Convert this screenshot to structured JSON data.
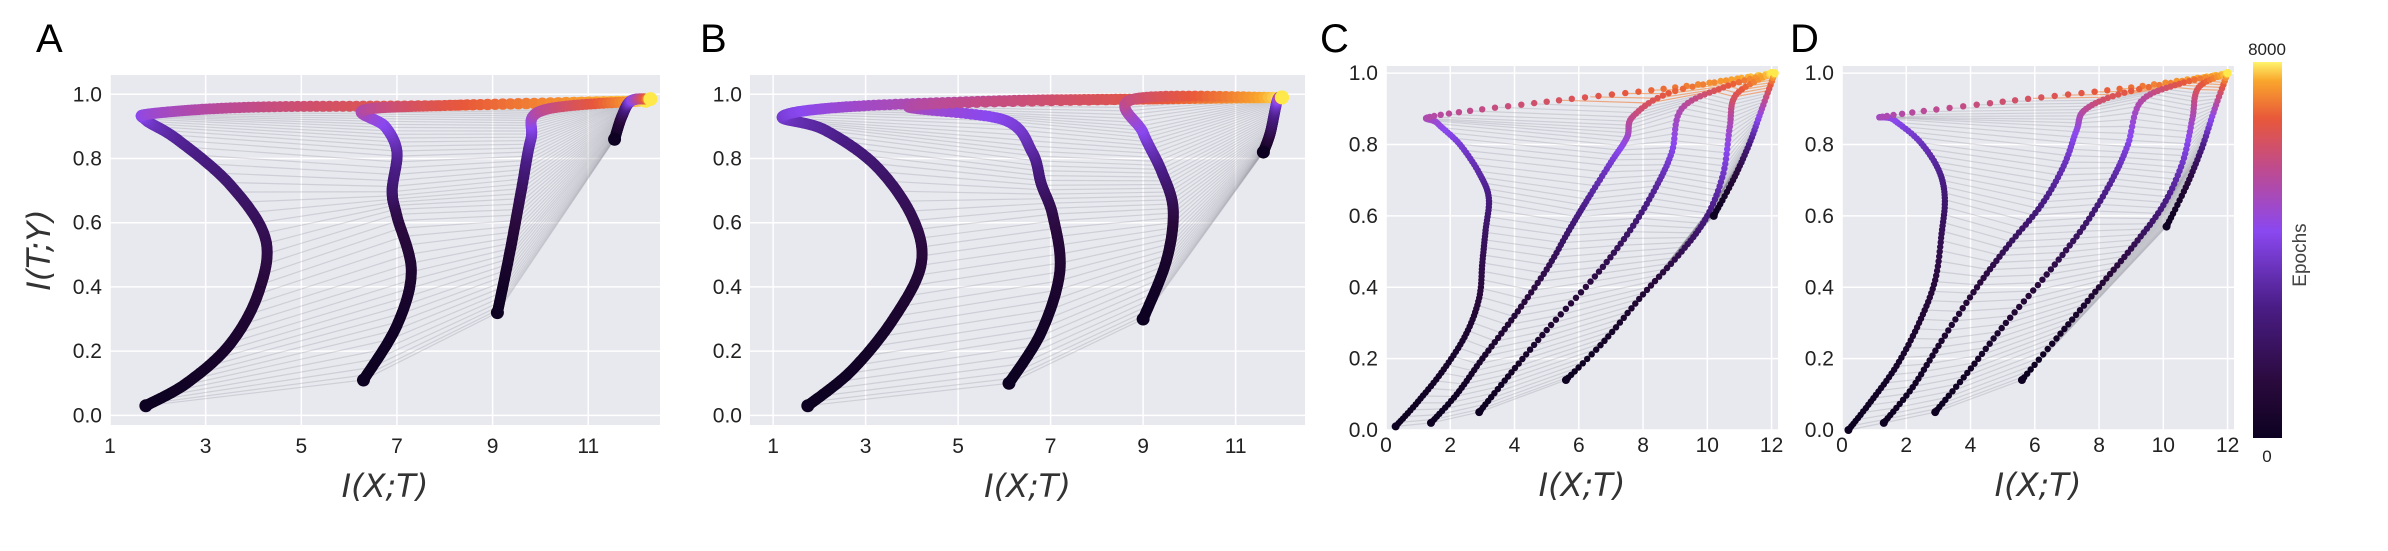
{
  "figure": {
    "colorbar": {
      "label": "Epochs",
      "max_label": "8000",
      "min_label": "0",
      "min": 0,
      "max": 8000
    }
  },
  "chart_data": [
    {
      "panel": "A",
      "type": "line",
      "xlabel": "I(X;T)",
      "ylabel": "I(T;Y)",
      "xlim": [
        1,
        12.5
      ],
      "ylim": [
        -0.03,
        1.06
      ],
      "xticks": [
        1,
        3,
        5,
        7,
        9,
        11
      ],
      "yticks": [
        "0.0",
        "0.2",
        "0.4",
        "0.6",
        "0.8",
        "1.0"
      ],
      "grid": true,
      "marker": "filled-circle",
      "color_encodes": "Epochs",
      "series": [
        {
          "points": [
            [
              1.75,
              0.03
            ],
            [
              2.6,
              0.1
            ],
            [
              3.5,
              0.22
            ],
            [
              4.1,
              0.38
            ],
            [
              4.25,
              0.55
            ],
            [
              3.5,
              0.72
            ],
            [
              2.4,
              0.86
            ],
            [
              1.75,
              0.92
            ],
            [
              1.9,
              0.94
            ],
            [
              4.0,
              0.96
            ],
            [
              8.0,
              0.965
            ],
            [
              12.2,
              0.98
            ]
          ]
        },
        {
          "points": [
            [
              6.3,
              0.11
            ],
            [
              7.0,
              0.28
            ],
            [
              7.3,
              0.45
            ],
            [
              7.0,
              0.62
            ],
            [
              6.9,
              0.7
            ],
            [
              7.0,
              0.82
            ],
            [
              6.75,
              0.9
            ],
            [
              6.3,
              0.95
            ],
            [
              8.0,
              0.965
            ],
            [
              12.2,
              0.98
            ]
          ]
        },
        {
          "points": [
            [
              9.1,
              0.32
            ],
            [
              9.35,
              0.5
            ],
            [
              9.6,
              0.7
            ],
            [
              9.8,
              0.86
            ],
            [
              10.05,
              0.95
            ],
            [
              12.2,
              0.98
            ]
          ]
        },
        {
          "points": [
            [
              11.55,
              0.86
            ],
            [
              11.7,
              0.93
            ],
            [
              11.9,
              0.98
            ],
            [
              12.3,
              0.985
            ]
          ]
        }
      ]
    },
    {
      "panel": "B",
      "type": "line",
      "xlabel": "I(X;T)",
      "ylabel": "",
      "xlim": [
        0.5,
        12.5
      ],
      "ylim": [
        -0.03,
        1.06
      ],
      "xticks": [
        1,
        3,
        5,
        7,
        9,
        11
      ],
      "yticks": [
        "0.0",
        "0.2",
        "0.4",
        "0.6",
        "0.8",
        "1.0"
      ],
      "grid": true,
      "marker": "filled-circle",
      "color_encodes": "Epochs",
      "series": [
        {
          "points": [
            [
              1.75,
              0.03
            ],
            [
              2.7,
              0.14
            ],
            [
              3.6,
              0.3
            ],
            [
              4.2,
              0.47
            ],
            [
              4.0,
              0.62
            ],
            [
              3.2,
              0.78
            ],
            [
              2.1,
              0.89
            ],
            [
              1.2,
              0.93
            ],
            [
              2.5,
              0.96
            ],
            [
              6.0,
              0.98
            ],
            [
              9.0,
              0.985
            ],
            [
              12.0,
              0.99
            ]
          ]
        },
        {
          "points": [
            [
              6.1,
              0.1
            ],
            [
              6.8,
              0.26
            ],
            [
              7.2,
              0.45
            ],
            [
              7.05,
              0.62
            ],
            [
              6.8,
              0.72
            ],
            [
              6.6,
              0.82
            ],
            [
              6.0,
              0.92
            ],
            [
              4.0,
              0.965
            ],
            [
              9.0,
              0.985
            ],
            [
              12.0,
              0.99
            ]
          ]
        },
        {
          "points": [
            [
              9.0,
              0.3
            ],
            [
              9.5,
              0.48
            ],
            [
              9.65,
              0.64
            ],
            [
              9.4,
              0.76
            ],
            [
              9.0,
              0.88
            ],
            [
              8.8,
              0.985
            ],
            [
              12.0,
              0.99
            ]
          ]
        },
        {
          "points": [
            [
              11.6,
              0.82
            ],
            [
              11.75,
              0.88
            ],
            [
              11.9,
              0.98
            ],
            [
              12.0,
              0.99
            ]
          ]
        }
      ]
    },
    {
      "panel": "C",
      "type": "scatter",
      "xlabel": "I(X;T)",
      "ylabel": "",
      "xlim": [
        0,
        12.2
      ],
      "ylim": [
        0,
        1.02
      ],
      "xticks": [
        0,
        2,
        4,
        6,
        8,
        10,
        12
      ],
      "yticks": [
        "0.0",
        "0.2",
        "0.4",
        "0.6",
        "0.8",
        "1.0"
      ],
      "grid": true,
      "marker": "filled-circle",
      "color_encodes": "Epochs",
      "series": [
        {
          "points": [
            [
              0.3,
              0.01
            ],
            [
              1.0,
              0.08
            ],
            [
              1.8,
              0.17
            ],
            [
              2.5,
              0.27
            ],
            [
              2.9,
              0.37
            ],
            [
              3.0,
              0.47
            ],
            [
              3.1,
              0.56
            ],
            [
              3.2,
              0.65
            ],
            [
              2.9,
              0.72
            ],
            [
              2.3,
              0.8
            ],
            [
              1.6,
              0.86
            ],
            [
              1.5,
              0.88
            ],
            [
              5.0,
              0.92
            ],
            [
              9.0,
              0.96
            ],
            [
              12.0,
              1.0
            ]
          ]
        },
        {
          "points": [
            [
              1.4,
              0.02
            ],
            [
              2.2,
              0.1
            ],
            [
              3.0,
              0.2
            ],
            [
              4.0,
              0.32
            ],
            [
              5.0,
              0.45
            ],
            [
              5.7,
              0.56
            ],
            [
              6.3,
              0.65
            ],
            [
              7.0,
              0.75
            ],
            [
              7.5,
              0.82
            ],
            [
              7.7,
              0.88
            ],
            [
              9.0,
              0.95
            ],
            [
              12.0,
              1.0
            ]
          ]
        },
        {
          "points": [
            [
              2.9,
              0.05
            ],
            [
              3.8,
              0.15
            ],
            [
              5.0,
              0.28
            ],
            [
              6.5,
              0.43
            ],
            [
              7.6,
              0.56
            ],
            [
              8.4,
              0.68
            ],
            [
              8.9,
              0.78
            ],
            [
              9.2,
              0.9
            ],
            [
              10.5,
              0.96
            ],
            [
              12.0,
              1.0
            ]
          ]
        },
        {
          "points": [
            [
              5.6,
              0.14
            ],
            [
              6.8,
              0.25
            ],
            [
              8.0,
              0.38
            ],
            [
              9.2,
              0.5
            ],
            [
              10.0,
              0.6
            ],
            [
              10.5,
              0.72
            ],
            [
              10.7,
              0.85
            ],
            [
              10.9,
              0.94
            ],
            [
              12.0,
              1.0
            ]
          ]
        },
        {
          "points": [
            [
              10.2,
              0.6
            ],
            [
              10.8,
              0.7
            ],
            [
              11.3,
              0.8
            ],
            [
              11.7,
              0.9
            ],
            [
              12.1,
              1.0
            ]
          ]
        }
      ]
    },
    {
      "panel": "D",
      "type": "scatter",
      "xlabel": "I(X;T)",
      "ylabel": "",
      "xlim": [
        0,
        12.2
      ],
      "ylim": [
        0,
        1.02
      ],
      "xticks": [
        0,
        2,
        4,
        6,
        8,
        10,
        12
      ],
      "yticks": [
        "0.0",
        "0.2",
        "0.4",
        "0.6",
        "0.8",
        "1.0"
      ],
      "grid": true,
      "marker": "filled-circle",
      "color_encodes": "Epochs",
      "series": [
        {
          "points": [
            [
              0.2,
              0.0
            ],
            [
              0.9,
              0.08
            ],
            [
              1.7,
              0.18
            ],
            [
              2.4,
              0.3
            ],
            [
              2.9,
              0.42
            ],
            [
              3.1,
              0.55
            ],
            [
              3.2,
              0.65
            ],
            [
              3.0,
              0.73
            ],
            [
              2.4,
              0.81
            ],
            [
              1.6,
              0.87
            ],
            [
              1.4,
              0.88
            ],
            [
              5.0,
              0.92
            ],
            [
              9.0,
              0.96
            ],
            [
              12.0,
              1.0
            ]
          ]
        },
        {
          "points": [
            [
              1.3,
              0.02
            ],
            [
              2.2,
              0.12
            ],
            [
              3.1,
              0.25
            ],
            [
              4.2,
              0.4
            ],
            [
              5.2,
              0.52
            ],
            [
              6.2,
              0.63
            ],
            [
              6.9,
              0.74
            ],
            [
              7.3,
              0.84
            ],
            [
              7.6,
              0.9
            ],
            [
              9.0,
              0.95
            ],
            [
              12.0,
              1.0
            ]
          ]
        },
        {
          "points": [
            [
              2.9,
              0.05
            ],
            [
              3.9,
              0.16
            ],
            [
              5.1,
              0.3
            ],
            [
              6.5,
              0.45
            ],
            [
              7.6,
              0.58
            ],
            [
              8.4,
              0.7
            ],
            [
              8.9,
              0.8
            ],
            [
              9.3,
              0.92
            ],
            [
              10.5,
              0.97
            ],
            [
              12.0,
              1.0
            ]
          ]
        },
        {
          "points": [
            [
              5.6,
              0.14
            ],
            [
              6.8,
              0.27
            ],
            [
              8.0,
              0.4
            ],
            [
              9.1,
              0.52
            ],
            [
              10.0,
              0.63
            ],
            [
              10.6,
              0.75
            ],
            [
              10.9,
              0.87
            ],
            [
              11.1,
              0.96
            ],
            [
              12.0,
              1.0
            ]
          ]
        },
        {
          "points": [
            [
              10.1,
              0.57
            ],
            [
              10.7,
              0.68
            ],
            [
              11.2,
              0.79
            ],
            [
              11.6,
              0.9
            ],
            [
              12.0,
              1.0
            ]
          ]
        }
      ]
    }
  ]
}
